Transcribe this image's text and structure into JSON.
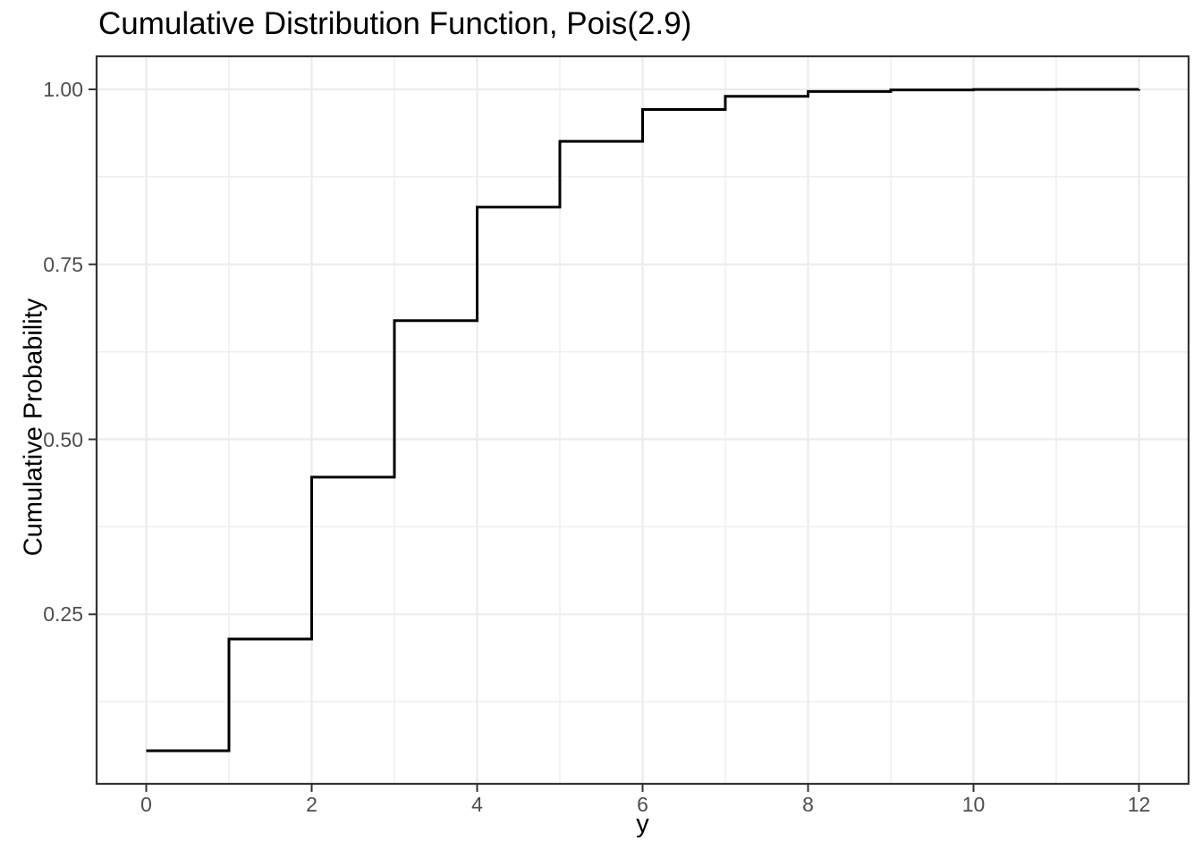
{
  "chart_data": {
    "type": "line",
    "subtype": "step",
    "step_direction": "hv",
    "title": "Cumulative Distribution Function, Pois(2.9)",
    "xlabel": "y",
    "ylabel": "Cumulative Probability",
    "x": [
      0,
      1,
      2,
      3,
      4,
      5,
      6,
      7,
      8,
      9,
      10,
      11,
      12
    ],
    "y": [
      0.055,
      0.2146,
      0.446,
      0.6696,
      0.8318,
      0.9258,
      0.9713,
      0.9901,
      0.9969,
      0.9991,
      0.9998,
      0.9999,
      1.0
    ],
    "xlim": [
      -0.6,
      12.6
    ],
    "ylim": [
      0.0078,
      1.0472
    ],
    "x_major_ticks": {
      "values": [
        0,
        2,
        4,
        6,
        8,
        10,
        12
      ],
      "labels": [
        "0",
        "2",
        "4",
        "6",
        "8",
        "10",
        "12"
      ]
    },
    "x_minor_ticks": [
      1,
      3,
      5,
      7,
      9,
      11
    ],
    "y_major_ticks": {
      "values": [
        0.25,
        0.5,
        0.75,
        1.0
      ],
      "labels": [
        "0.25",
        "0.50",
        "0.75",
        "1.00"
      ]
    },
    "y_minor_ticks": [
      0.125,
      0.375,
      0.625,
      0.875
    ],
    "grid": "major+minor",
    "legend": "none",
    "colors": {
      "line": "#000000",
      "grid_major": "#EBEBEB",
      "grid_minor": "#EDEDED",
      "panel_border": "#333333",
      "tick_mark": "#333333",
      "tick_label": "#4D4D4D",
      "title": "#000000",
      "axis_title": "#000000",
      "panel_background": "#FFFFFF",
      "plot_background": "#FFFFFF"
    }
  }
}
